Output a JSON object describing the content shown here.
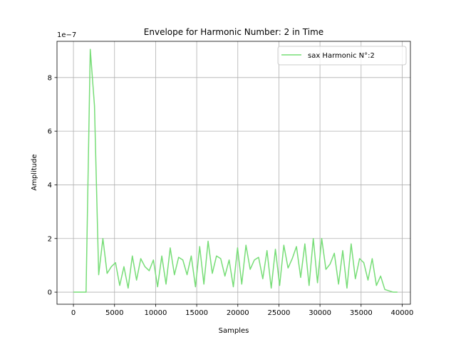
{
  "chart_data": {
    "type": "line",
    "title": "Envelope for Harmonic Number: 2 in Time",
    "xlabel": "Samples",
    "ylabel": "Amplitude",
    "y_offset_label": "1e−7",
    "xlim": [
      -2000,
      41000
    ],
    "ylim": [
      -0.45,
      9.35
    ],
    "xticks": [
      0,
      5000,
      10000,
      15000,
      20000,
      25000,
      30000,
      35000,
      40000
    ],
    "xtick_labels": [
      "0",
      "5000",
      "10000",
      "15000",
      "20000",
      "25000",
      "30000",
      "35000",
      "40000"
    ],
    "yticks": [
      0,
      2,
      4,
      6,
      8
    ],
    "ytick_labels": [
      "0",
      "2",
      "4",
      "6",
      "8"
    ],
    "grid": true,
    "legend_position": "top-right",
    "series": [
      {
        "name": "sax Harmonic N°:2",
        "color": "#77dd77",
        "x": [
          0,
          512,
          1024,
          1536,
          2048,
          2560,
          3072,
          3584,
          4096,
          4608,
          5120,
          5632,
          6144,
          6656,
          7168,
          7680,
          8192,
          8704,
          9216,
          9728,
          10240,
          10752,
          11264,
          11776,
          12288,
          12800,
          13312,
          13824,
          14336,
          14848,
          15360,
          15872,
          16384,
          16896,
          17408,
          17920,
          18432,
          18944,
          19456,
          19968,
          20480,
          20992,
          21504,
          22016,
          22528,
          23040,
          23552,
          24064,
          24576,
          25088,
          25600,
          26112,
          26624,
          27136,
          27648,
          28160,
          28672,
          29184,
          29696,
          30208,
          30720,
          31232,
          31744,
          32256,
          32768,
          33280,
          33792,
          34304,
          34816,
          35328,
          35840,
          36352,
          36864,
          37376,
          37888,
          38400,
          38912,
          39424
        ],
        "values": [
          0,
          0,
          0,
          0,
          9.05,
          6.95,
          0.65,
          2.0,
          0.7,
          0.95,
          1.1,
          0.25,
          0.95,
          0.15,
          1.35,
          0.45,
          1.25,
          0.95,
          0.8,
          1.2,
          0.2,
          1.35,
          0.3,
          1.65,
          0.65,
          1.3,
          1.2,
          0.65,
          1.35,
          0.2,
          1.7,
          0.3,
          1.9,
          0.7,
          1.35,
          1.25,
          0.6,
          1.2,
          0.2,
          1.65,
          0.3,
          1.75,
          0.85,
          1.2,
          1.3,
          0.5,
          1.55,
          0.15,
          1.6,
          0.25,
          1.75,
          0.9,
          1.25,
          1.7,
          0.55,
          1.8,
          0.25,
          2.0,
          0.35,
          2.0,
          0.85,
          1.05,
          1.45,
          0.3,
          1.55,
          0.15,
          1.8,
          0.5,
          1.25,
          1.1,
          0.45,
          1.25,
          0.25,
          0.6,
          0.1,
          0.05,
          0.0,
          0.0
        ]
      }
    ]
  }
}
